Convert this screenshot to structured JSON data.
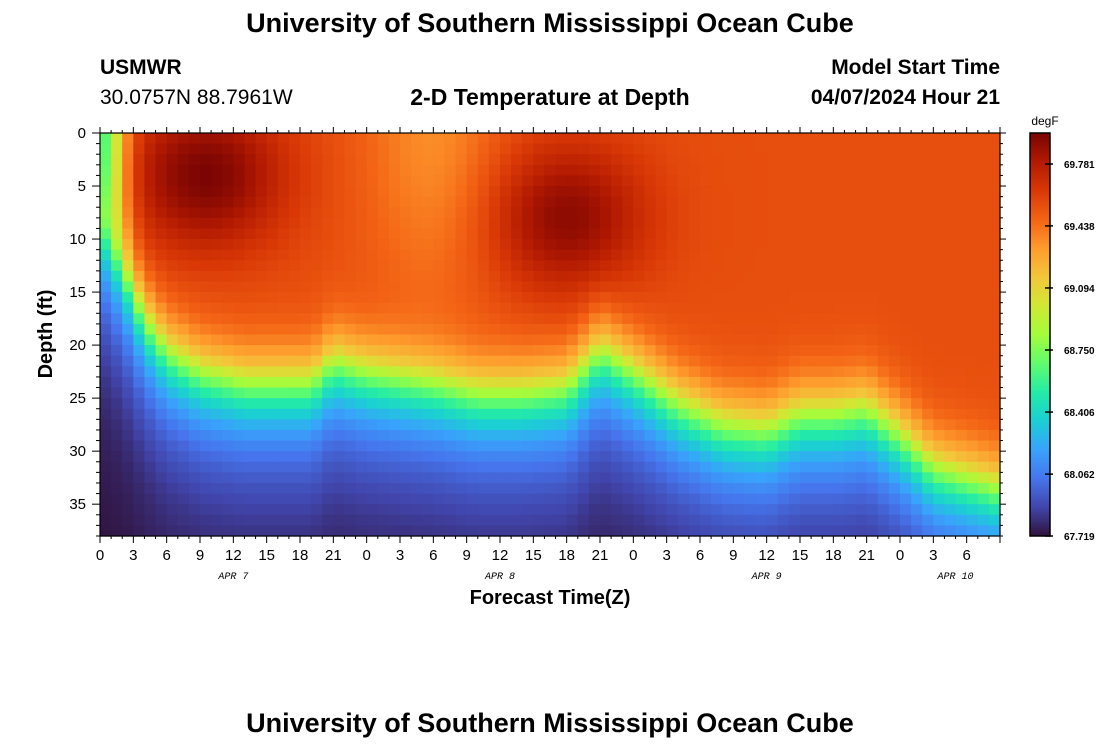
{
  "header": {
    "title": "University of Southern Mississippi Ocean Cube",
    "station": "USMWR",
    "coords": "30.0757N  88.7961W",
    "subtitle": "2-D Temperature at Depth",
    "model_label": "Model Start Time",
    "model_time": "04/07/2024 Hour 21"
  },
  "footer": {
    "title": "University of Southern Mississippi Ocean Cube"
  },
  "colors": {
    "colormap": [
      "#30123b",
      "#4145ab",
      "#4675ed",
      "#39a2fc",
      "#1bcfd4",
      "#24eca6",
      "#61fc6c",
      "#a4fc3b",
      "#d1e834",
      "#f3c63a",
      "#fe9b2d",
      "#f36315",
      "#d93806",
      "#b11901",
      "#7a0403"
    ]
  },
  "chart_data": {
    "type": "heatmap",
    "title": "2-D Temperature at Depth",
    "xlabel": "Forecast Time(Z)",
    "ylabel": "Depth (ft)",
    "unit": "degF",
    "x_range": [
      0,
      81
    ],
    "y_range": [
      0,
      38
    ],
    "y_ticks": [
      0,
      5,
      10,
      15,
      20,
      25,
      30,
      35
    ],
    "x_ticks": [
      {
        "t": 0,
        "label": "0"
      },
      {
        "t": 3,
        "label": "3"
      },
      {
        "t": 6,
        "label": "6"
      },
      {
        "t": 9,
        "label": "9"
      },
      {
        "t": 12,
        "label": "12"
      },
      {
        "t": 15,
        "label": "15"
      },
      {
        "t": 18,
        "label": "18"
      },
      {
        "t": 21,
        "label": "21"
      },
      {
        "t": 24,
        "label": "0"
      },
      {
        "t": 27,
        "label": "3"
      },
      {
        "t": 30,
        "label": "6"
      },
      {
        "t": 33,
        "label": "9"
      },
      {
        "t": 36,
        "label": "12"
      },
      {
        "t": 39,
        "label": "15"
      },
      {
        "t": 42,
        "label": "18"
      },
      {
        "t": 45,
        "label": "21"
      },
      {
        "t": 48,
        "label": "0"
      },
      {
        "t": 51,
        "label": "3"
      },
      {
        "t": 54,
        "label": "6"
      },
      {
        "t": 57,
        "label": "9"
      },
      {
        "t": 60,
        "label": "12"
      },
      {
        "t": 63,
        "label": "15"
      },
      {
        "t": 66,
        "label": "18"
      },
      {
        "t": 69,
        "label": "21"
      },
      {
        "t": 72,
        "label": "0"
      },
      {
        "t": 75,
        "label": "3"
      },
      {
        "t": 78,
        "label": "6"
      }
    ],
    "date_labels": [
      {
        "t": 12,
        "label": "APR 7"
      },
      {
        "t": 36,
        "label": "APR 8"
      },
      {
        "t": 60,
        "label": "APR 9"
      },
      {
        "t": 77,
        "label": "APR 10"
      }
    ],
    "colorbar": {
      "min": 67.719,
      "max": 69.953,
      "labels": [
        "69.781",
        "69.438",
        "69.094",
        "68.750",
        "68.406",
        "68.062",
        "67.719"
      ]
    },
    "thermocline_ft": [
      {
        "t": 0,
        "d": 7
      },
      {
        "t": 2,
        "d": 11
      },
      {
        "t": 4,
        "d": 16
      },
      {
        "t": 6,
        "d": 19
      },
      {
        "t": 9,
        "d": 21
      },
      {
        "t": 13,
        "d": 22
      },
      {
        "t": 17,
        "d": 22
      },
      {
        "t": 19,
        "d": 22
      },
      {
        "t": 21,
        "d": 20
      },
      {
        "t": 24,
        "d": 21
      },
      {
        "t": 30,
        "d": 22
      },
      {
        "t": 34,
        "d": 23
      },
      {
        "t": 38,
        "d": 23
      },
      {
        "t": 42,
        "d": 22.5
      },
      {
        "t": 45,
        "d": 19
      },
      {
        "t": 48,
        "d": 21
      },
      {
        "t": 52,
        "d": 24
      },
      {
        "t": 56,
        "d": 26
      },
      {
        "t": 60,
        "d": 26.5
      },
      {
        "t": 63,
        "d": 25
      },
      {
        "t": 66,
        "d": 25
      },
      {
        "t": 69,
        "d": 24.5
      },
      {
        "t": 72,
        "d": 27
      },
      {
        "t": 75,
        "d": 30
      },
      {
        "t": 78,
        "d": 31
      },
      {
        "t": 81,
        "d": 32
      }
    ],
    "warm_cores": [
      {
        "t": 9.5,
        "d": 4,
        "temp": 69.95
      },
      {
        "t": 42,
        "d": 8,
        "temp": 69.9
      }
    ],
    "surface_mixed_temp": 69.55,
    "midday_cool_band": {
      "t": 30,
      "temp": 69.35
    },
    "bottom_temp": 67.72
  }
}
